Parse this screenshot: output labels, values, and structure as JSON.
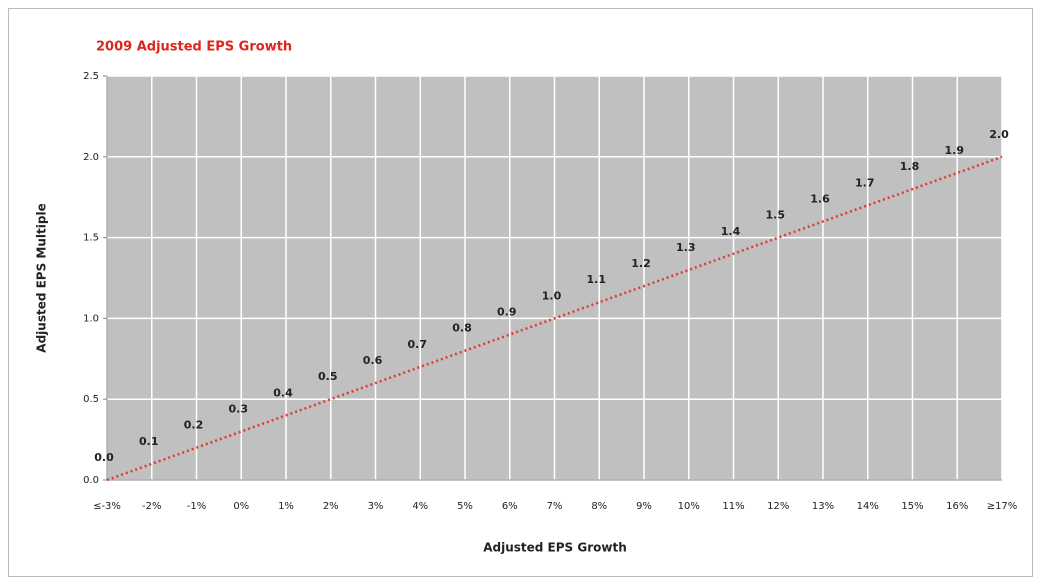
{
  "chart_data": {
    "type": "line",
    "title": "2009  Adjusted EPS Growth",
    "xlabel": "Adjusted EPS Growth",
    "ylabel": "Adjusted EPS Multiple",
    "categories": [
      "≤-3%",
      "-2%",
      "-1%",
      "0%",
      "1%",
      "2%",
      "3%",
      "4%",
      "5%",
      "6%",
      "7%",
      "8%",
      "9%",
      "10%",
      "11%",
      "12%",
      "13%",
      "14%",
      "15%",
      "16%",
      "≥17%"
    ],
    "values": [
      0,
      0.1,
      0.2,
      0.3,
      0.4,
      0.5,
      0.6,
      0.7,
      0.8,
      0.9,
      1,
      1.1,
      1.2,
      1.3,
      1.4,
      1.5,
      1.6,
      1.7,
      1.8,
      1.9,
      2
    ],
    "value_labels": [
      "0.0",
      "0.1",
      "0.2",
      "0.3",
      "0.4",
      "0.5",
      "0.6",
      "0.7",
      "0.8",
      "0.9",
      "1.0",
      "1.1",
      "1.2",
      "1.3",
      "1.4",
      "1.5",
      "1.6",
      "1.7",
      "1.8",
      "1.9",
      "2.0"
    ],
    "color": "#e03a2e",
    "ylim": [
      0,
      2.5
    ],
    "yticks": [
      {
        "value": 0,
        "label": "0.0"
      },
      0.5,
      {
        "value": 1,
        "label": "1.0"
      },
      1.5,
      {
        "value": 2,
        "label": "2.0"
      },
      2.5
    ],
    "grid": true
  }
}
